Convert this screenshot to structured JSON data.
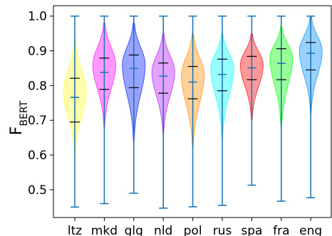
{
  "chart_data": {
    "type": "violin",
    "title": "",
    "xlabel": "",
    "ylabel": "F",
    "ylabel_subscript": "BERT",
    "ylim": [
      0.42,
      1.03
    ],
    "yticks": [
      0.5,
      0.6,
      0.7,
      0.8,
      0.9,
      1.0
    ],
    "ytick_labels": [
      "0.5",
      "0.6",
      "0.7",
      "0.8",
      "0.9",
      "1.0"
    ],
    "categories": [
      "ltz",
      "mkd",
      "glg",
      "nld",
      "pol",
      "rus",
      "spa",
      "fra",
      "eng"
    ],
    "grid": false,
    "series": [
      {
        "label": "ltz",
        "color": "#ffff66",
        "min": 0.45,
        "max": 1.0,
        "q1": 0.695,
        "median": 0.766,
        "q3": 0.821,
        "kde_low": 0.6,
        "kde_high": 0.93,
        "kde_peak": 0.78
      },
      {
        "label": "mkd",
        "color": "#ff44ff",
        "min": 0.46,
        "max": 1.0,
        "q1": 0.789,
        "median": 0.838,
        "q3": 0.879,
        "kde_low": 0.68,
        "kde_high": 0.98,
        "kde_peak": 0.86
      },
      {
        "label": "glg",
        "color": "#4455ff",
        "min": 0.49,
        "max": 1.0,
        "q1": 0.794,
        "median": 0.849,
        "q3": 0.888,
        "kde_low": 0.64,
        "kde_high": 0.98,
        "kde_peak": 0.86
      },
      {
        "label": "nld",
        "color": "#cc55ff",
        "min": 0.447,
        "max": 1.0,
        "q1": 0.778,
        "median": 0.827,
        "q3": 0.865,
        "kde_low": 0.66,
        "kde_high": 0.95,
        "kde_peak": 0.84
      },
      {
        "label": "pol",
        "color": "#ffaa44",
        "min": 0.451,
        "max": 1.0,
        "q1": 0.762,
        "median": 0.81,
        "q3": 0.855,
        "kde_low": 0.62,
        "kde_high": 0.95,
        "kde_peak": 0.83
      },
      {
        "label": "rus",
        "color": "#44ffff",
        "min": 0.455,
        "max": 1.0,
        "q1": 0.785,
        "median": 0.832,
        "q3": 0.876,
        "kde_low": 0.65,
        "kde_high": 0.95,
        "kde_peak": 0.85
      },
      {
        "label": "spa",
        "color": "#ff4444",
        "min": 0.513,
        "max": 1.0,
        "q1": 0.817,
        "median": 0.851,
        "q3": 0.884,
        "kde_low": 0.7,
        "kde_high": 0.95,
        "kde_peak": 0.86
      },
      {
        "label": "fra",
        "color": "#44ff44",
        "min": 0.467,
        "max": 1.0,
        "q1": 0.817,
        "median": 0.864,
        "q3": 0.906,
        "kde_low": 0.68,
        "kde_high": 0.97,
        "kde_peak": 0.88
      },
      {
        "label": "eng",
        "color": "#44aaff",
        "min": 0.477,
        "max": 1.0,
        "q1": 0.845,
        "median": 0.893,
        "q3": 0.924,
        "kde_low": 0.72,
        "kde_high": 1.0,
        "kde_peak": 0.9
      }
    ],
    "colors": {
      "whisker": "#1f77b4",
      "quartile": "#000000",
      "median_tick": "#1f77b4"
    }
  }
}
